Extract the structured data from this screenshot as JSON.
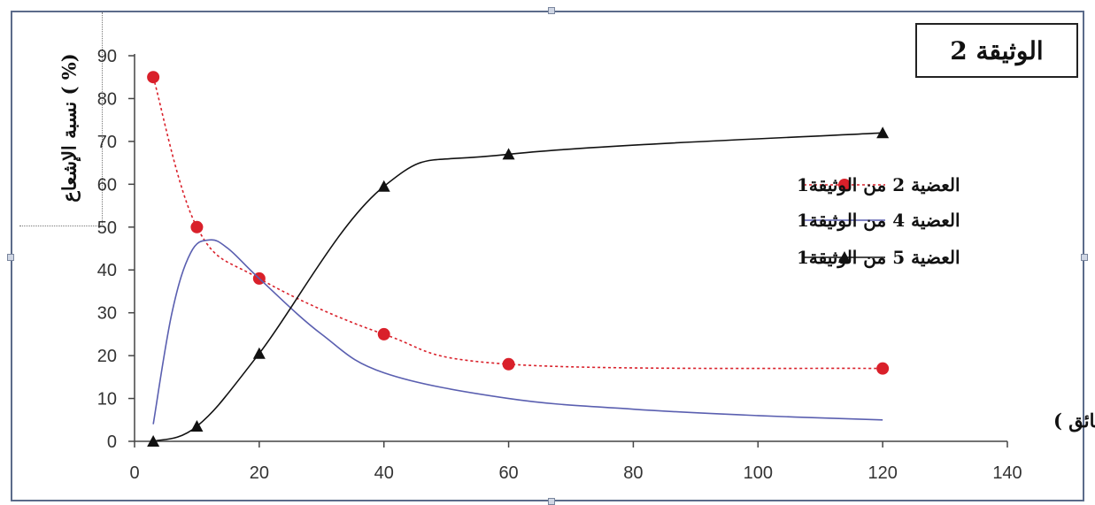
{
  "doc_label": "الوثيقة 2",
  "chart_data": {
    "type": "line",
    "title": "الوثيقة 2",
    "ylabel": "نسبة الإشعاع ( %)",
    "xlabel": "الزمن ( دقائق )",
    "xlim": [
      0,
      140
    ],
    "ylim": [
      0,
      90
    ],
    "x_ticks": [
      "0",
      "20",
      "40",
      "60",
      "80",
      "100",
      "120",
      "140"
    ],
    "y_ticks": [
      "0",
      "10",
      "20",
      "30",
      "40",
      "50",
      "60",
      "70",
      "80",
      "90"
    ],
    "legend_position": "right",
    "grid": false,
    "series": [
      {
        "name": "العضية 2 من الوثيقة1",
        "style": "dotted-red-circles",
        "color": "#d9202a",
        "x": [
          3,
          10,
          20,
          40,
          60,
          120
        ],
        "values": [
          85,
          50,
          38,
          25,
          18,
          17
        ]
      },
      {
        "name": "العضية 4 من الوثيقة1",
        "style": "solid-blue",
        "color": "#5a5fb0",
        "x": [
          3,
          6,
          9,
          12,
          15,
          20,
          30,
          40,
          60,
          80,
          100,
          120
        ],
        "values": [
          4,
          30,
          44,
          47,
          45,
          38,
          25,
          16,
          10,
          7.5,
          6,
          5
        ]
      },
      {
        "name": "العضية 5 من الوثيقة1",
        "style": "solid-black-triangles",
        "color": "#111111",
        "x": [
          3,
          10,
          20,
          40,
          60,
          120
        ],
        "values": [
          0,
          3.5,
          20.5,
          59.5,
          67,
          72
        ]
      }
    ]
  }
}
